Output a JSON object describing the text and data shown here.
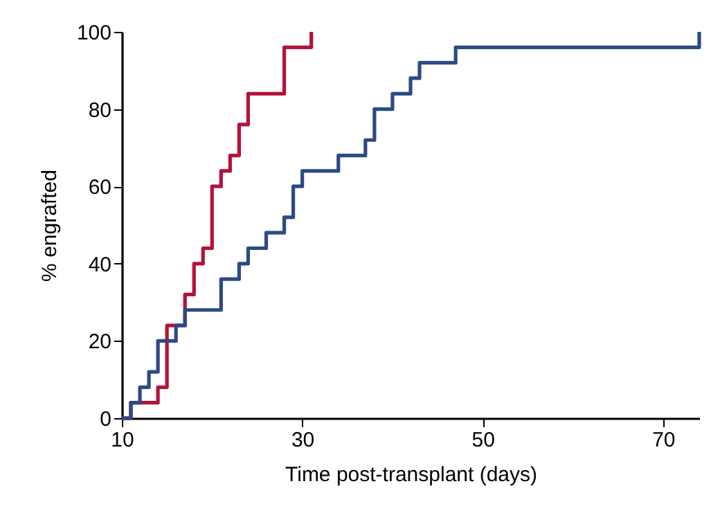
{
  "chart_data": {
    "type": "step",
    "xlabel": "Time post-transplant (days)",
    "ylabel": "% engrafted",
    "xlim": [
      10,
      74
    ],
    "xticks": [
      10,
      30,
      50,
      70
    ],
    "ylim": [
      0,
      100
    ],
    "yticks": [
      0,
      20,
      40,
      60,
      80,
      100
    ],
    "series": [
      {
        "color": "#b5123a",
        "x": [
          10,
          11,
          14,
          15,
          17,
          18,
          19,
          20,
          21,
          22,
          23,
          24,
          28,
          31
        ],
        "values": [
          0,
          4,
          8,
          24,
          32,
          40,
          44,
          60,
          64,
          68,
          76,
          84,
          96,
          100
        ]
      },
      {
        "color": "#2c4a85",
        "x": [
          10,
          11,
          12,
          13,
          14,
          16,
          17,
          21,
          23,
          24,
          26,
          28,
          29,
          30,
          34,
          37,
          38,
          40,
          42,
          43,
          47,
          74
        ],
        "values": [
          0,
          4,
          8,
          12,
          20,
          24,
          28,
          36,
          40,
          44,
          48,
          52,
          60,
          64,
          68,
          72,
          80,
          84,
          88,
          92,
          96,
          100
        ]
      }
    ]
  }
}
